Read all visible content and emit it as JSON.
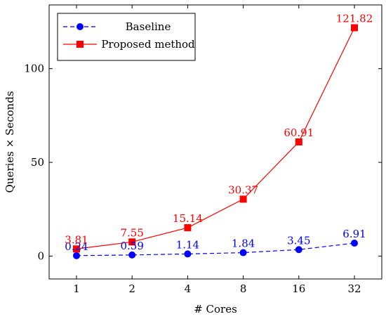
{
  "chart_data": {
    "type": "line",
    "categories": [
      "1",
      "2",
      "4",
      "8",
      "16",
      "32"
    ],
    "series": [
      {
        "name": "Baseline",
        "values": [
          0.24,
          0.59,
          1.14,
          1.84,
          3.45,
          6.91
        ],
        "labels": [
          "0.24",
          "0.59",
          "1.14",
          "1.84",
          "3.45",
          "6.91"
        ],
        "color": "#0000ff",
        "marker": "circle",
        "line_style": "dashed"
      },
      {
        "name": "Proposed method",
        "values": [
          3.81,
          7.55,
          15.14,
          30.37,
          60.91,
          121.82
        ],
        "labels": [
          "3.81",
          "7.55",
          "15.14",
          "30.37",
          "60.91",
          "121.82"
        ],
        "color": "#ff0000",
        "marker": "square",
        "line_style": "solid"
      }
    ],
    "xlabel": "# Cores",
    "ylabel": "Queries × Seconds",
    "yticks": [
      0,
      50,
      100
    ],
    "ylim": [
      -12.2,
      134
    ],
    "grid": false,
    "legend_position": "top-left"
  }
}
